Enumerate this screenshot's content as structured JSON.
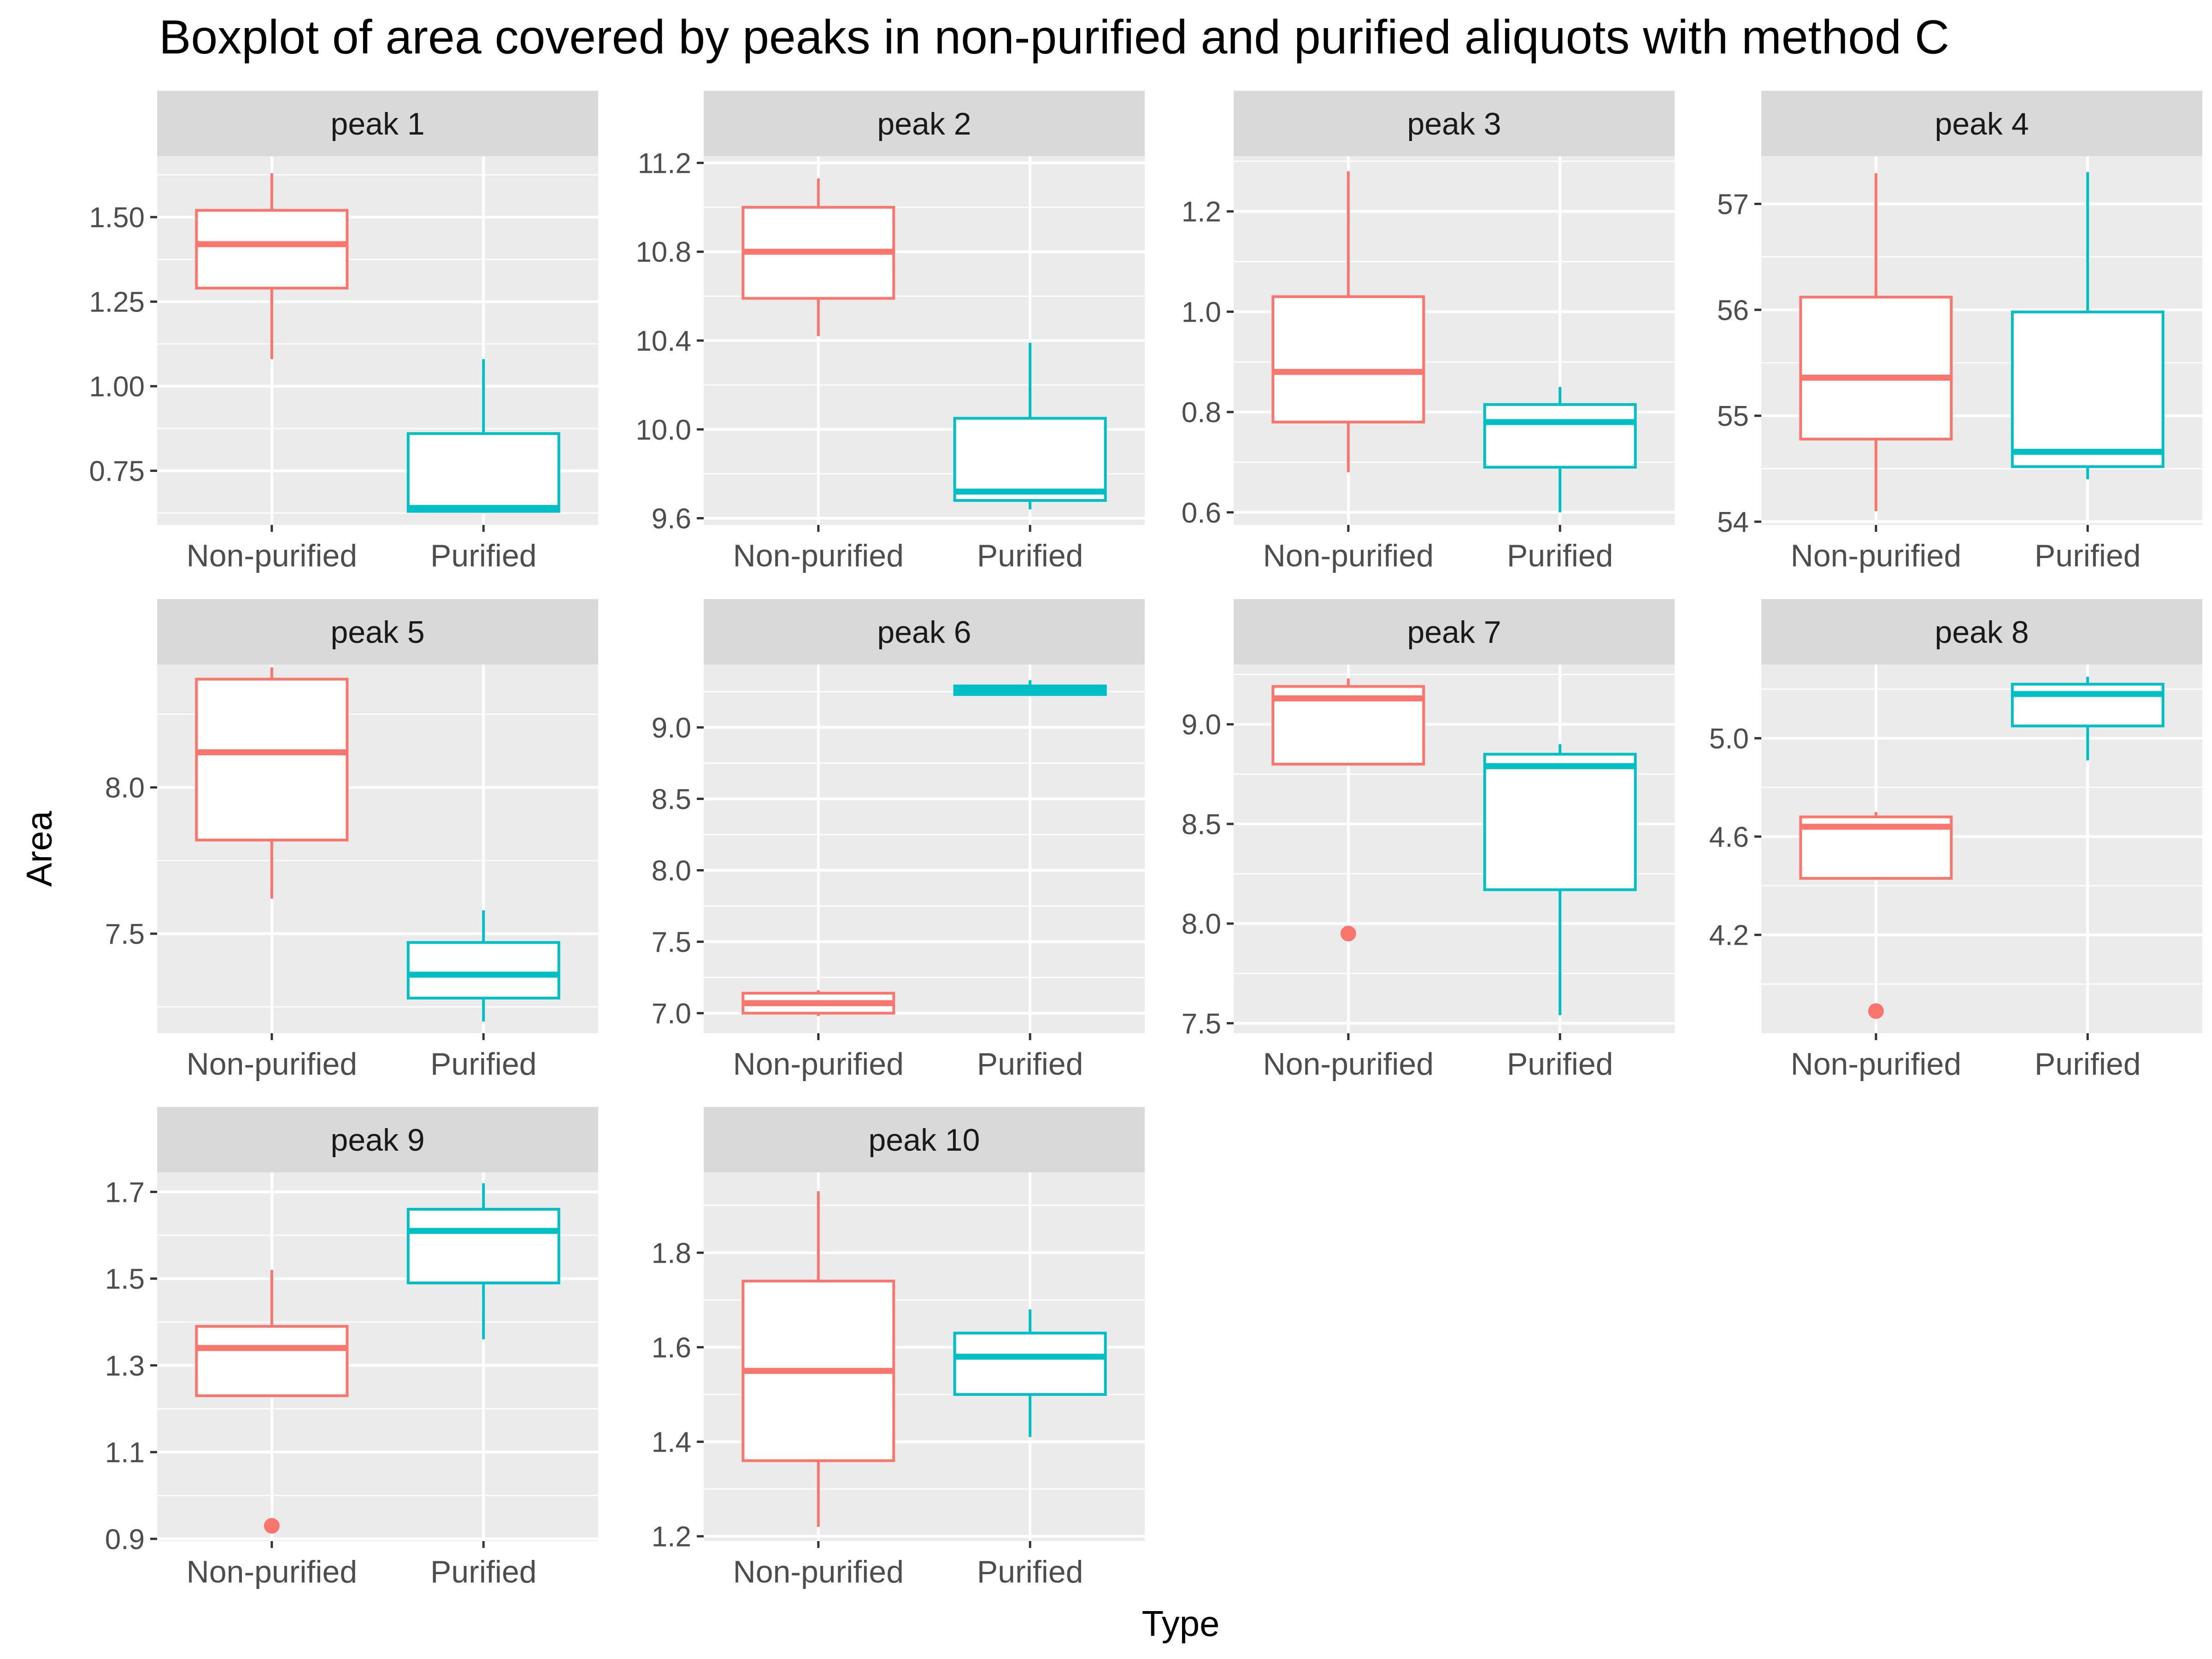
{
  "chart_data": {
    "type": "boxplot",
    "title": "Boxplot of area covered by peaks in non-purified and purified aliquots with method C",
    "xlabel": "Type",
    "ylabel": "Area",
    "categories": [
      "Non-purified",
      "Purified"
    ],
    "colors": {
      "Non-purified": "#F8766D",
      "Purified": "#00BFC4"
    },
    "panel_background": "#EBEBEB",
    "strip_background": "#D9D9D9",
    "grid": true,
    "legend": "none",
    "panels": [
      {
        "strip": "peak 1",
        "ylim": [
          0.59,
          1.68
        ],
        "ticks": [
          "0.75",
          "1.00",
          "1.25",
          "1.50"
        ],
        "boxes": [
          {
            "category": "Non-purified",
            "min": 1.08,
            "q1": 1.29,
            "median": 1.42,
            "q3": 1.52,
            "max": 1.63,
            "outliers": []
          },
          {
            "category": "Purified",
            "min": 0.63,
            "q1": 0.63,
            "median": 0.64,
            "q3": 0.86,
            "max": 1.08,
            "outliers": []
          }
        ]
      },
      {
        "strip": "peak 2",
        "ylim": [
          9.57,
          11.23
        ],
        "ticks": [
          "9.6",
          "10.0",
          "10.4",
          "10.8",
          "11.2"
        ],
        "boxes": [
          {
            "category": "Non-purified",
            "min": 10.42,
            "q1": 10.59,
            "median": 10.8,
            "q3": 11.0,
            "max": 11.13,
            "outliers": []
          },
          {
            "category": "Purified",
            "min": 9.64,
            "q1": 9.68,
            "median": 9.72,
            "q3": 10.05,
            "max": 10.39,
            "outliers": []
          }
        ]
      },
      {
        "strip": "peak 3",
        "ylim": [
          0.575,
          1.31
        ],
        "ticks": [
          "0.6",
          "0.8",
          "1.0",
          "1.2"
        ],
        "boxes": [
          {
            "category": "Non-purified",
            "min": 0.68,
            "q1": 0.78,
            "median": 0.88,
            "q3": 1.03,
            "max": 1.28,
            "outliers": []
          },
          {
            "category": "Purified",
            "min": 0.6,
            "q1": 0.69,
            "median": 0.78,
            "q3": 0.815,
            "max": 0.85,
            "outliers": []
          }
        ]
      },
      {
        "strip": "peak 4",
        "ylim": [
          53.97,
          57.45
        ],
        "ticks": [
          "54",
          "55",
          "56",
          "57"
        ],
        "boxes": [
          {
            "category": "Non-purified",
            "min": 54.1,
            "q1": 54.78,
            "median": 55.36,
            "q3": 56.12,
            "max": 57.29,
            "outliers": []
          },
          {
            "category": "Purified",
            "min": 54.4,
            "q1": 54.52,
            "median": 54.66,
            "q3": 55.98,
            "max": 57.3,
            "outliers": []
          }
        ]
      },
      {
        "strip": "peak 5",
        "ylim": [
          7.16,
          8.42
        ],
        "ticks": [
          "7.5",
          "8.0"
        ],
        "boxes": [
          {
            "category": "Non-purified",
            "min": 7.62,
            "q1": 7.82,
            "median": 8.12,
            "q3": 8.37,
            "max": 8.41,
            "outliers": []
          },
          {
            "category": "Purified",
            "min": 7.2,
            "q1": 7.28,
            "median": 7.36,
            "q3": 7.47,
            "max": 7.58,
            "outliers": []
          }
        ]
      },
      {
        "strip": "peak 6",
        "ylim": [
          6.86,
          9.44
        ],
        "ticks": [
          "7.0",
          "7.5",
          "8.0",
          "8.5",
          "9.0"
        ],
        "boxes": [
          {
            "category": "Non-purified",
            "min": 6.98,
            "q1": 7.0,
            "median": 7.07,
            "q3": 7.14,
            "max": 7.16,
            "outliers": []
          },
          {
            "category": "Purified",
            "min": 9.22,
            "q1": 9.23,
            "median": 9.26,
            "q3": 9.29,
            "max": 9.33,
            "outliers": []
          }
        ]
      },
      {
        "strip": "peak 7",
        "ylim": [
          7.45,
          9.3
        ],
        "ticks": [
          "7.5",
          "8.0",
          "8.5",
          "9.0"
        ],
        "boxes": [
          {
            "category": "Non-purified",
            "min": 8.8,
            "q1": 8.8,
            "median": 9.13,
            "q3": 9.19,
            "max": 9.23,
            "outliers": [
              7.95
            ]
          },
          {
            "category": "Purified",
            "min": 7.54,
            "q1": 8.17,
            "median": 8.79,
            "q3": 8.85,
            "max": 8.9,
            "outliers": []
          }
        ]
      },
      {
        "strip": "peak 8",
        "ylim": [
          3.8,
          5.3
        ],
        "ticks": [
          "4.2",
          "4.6",
          "5.0"
        ],
        "boxes": [
          {
            "category": "Non-purified",
            "min": 4.43,
            "q1": 4.43,
            "median": 4.64,
            "q3": 4.68,
            "max": 4.7,
            "outliers": [
              3.89
            ]
          },
          {
            "category": "Purified",
            "min": 4.91,
            "q1": 5.05,
            "median": 5.18,
            "q3": 5.22,
            "max": 5.25,
            "outliers": []
          }
        ]
      },
      {
        "strip": "peak 9",
        "ylim": [
          0.895,
          1.745
        ],
        "ticks": [
          "0.9",
          "1.1",
          "1.3",
          "1.5",
          "1.7"
        ],
        "boxes": [
          {
            "category": "Non-purified",
            "min": 1.23,
            "q1": 1.23,
            "median": 1.34,
            "q3": 1.39,
            "max": 1.52,
            "outliers": [
              0.93
            ]
          },
          {
            "category": "Purified",
            "min": 1.36,
            "q1": 1.49,
            "median": 1.61,
            "q3": 1.66,
            "max": 1.72,
            "outliers": []
          }
        ]
      },
      {
        "strip": "peak 10",
        "ylim": [
          1.19,
          1.97
        ],
        "ticks": [
          "1.2",
          "1.4",
          "1.6",
          "1.8"
        ],
        "boxes": [
          {
            "category": "Non-purified",
            "min": 1.22,
            "q1": 1.36,
            "median": 1.55,
            "q3": 1.74,
            "max": 1.93,
            "outliers": []
          },
          {
            "category": "Purified",
            "min": 1.41,
            "q1": 1.5,
            "median": 1.58,
            "q3": 1.63,
            "max": 1.68,
            "outliers": []
          }
        ]
      }
    ]
  }
}
